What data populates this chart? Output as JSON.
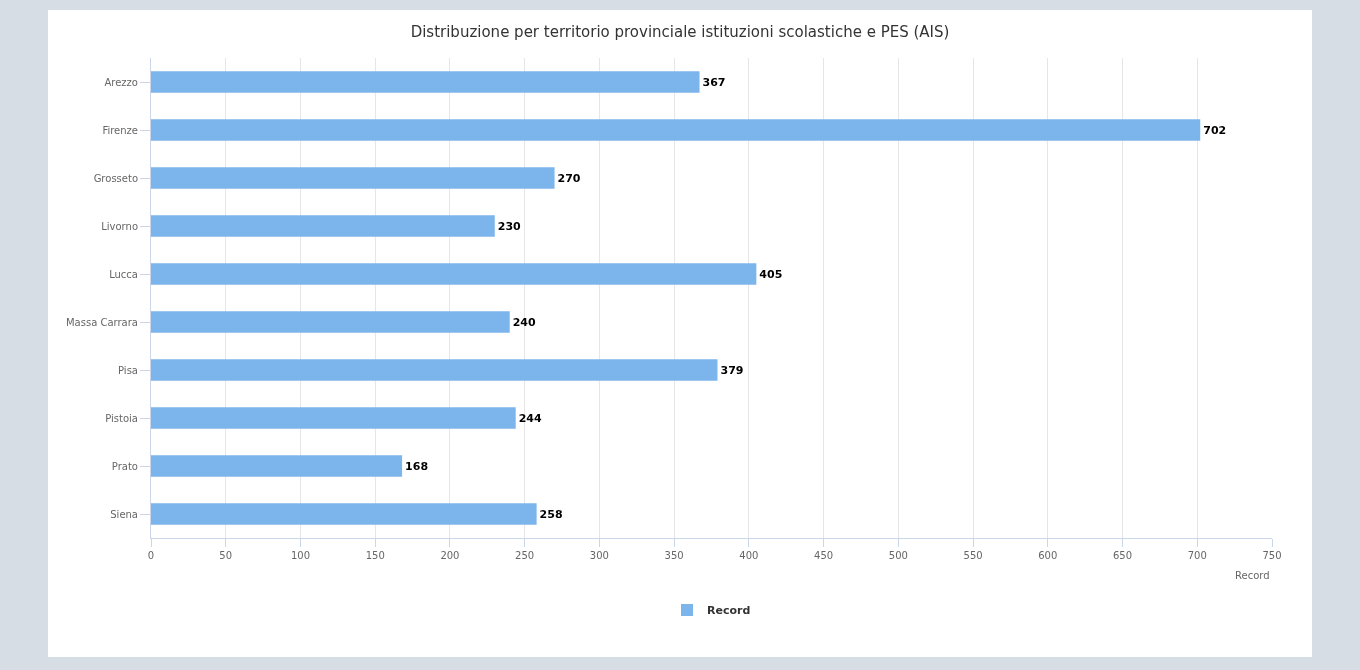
{
  "chart_data": {
    "type": "bar",
    "orientation": "horizontal",
    "title": "Distribuzione per territorio provinciale istituzioni scolastiche e PES (AIS)",
    "xlabel": "Record",
    "categories": [
      "Arezzo",
      "Firenze",
      "Grosseto",
      "Livorno",
      "Lucca",
      "Massa Carrara",
      "Pisa",
      "Pistoia",
      "Prato",
      "Siena"
    ],
    "series": [
      {
        "name": "Record",
        "color": "#7cb5ec",
        "values": [
          367,
          702,
          270,
          230,
          405,
          240,
          379,
          244,
          168,
          258
        ]
      }
    ],
    "xlim": [
      0,
      750
    ],
    "xticks": [
      0,
      50,
      100,
      150,
      200,
      250,
      300,
      350,
      400,
      450,
      500,
      550,
      600,
      650,
      700,
      750
    ],
    "grid": "x",
    "legend": "bottom",
    "data_labels": true
  }
}
